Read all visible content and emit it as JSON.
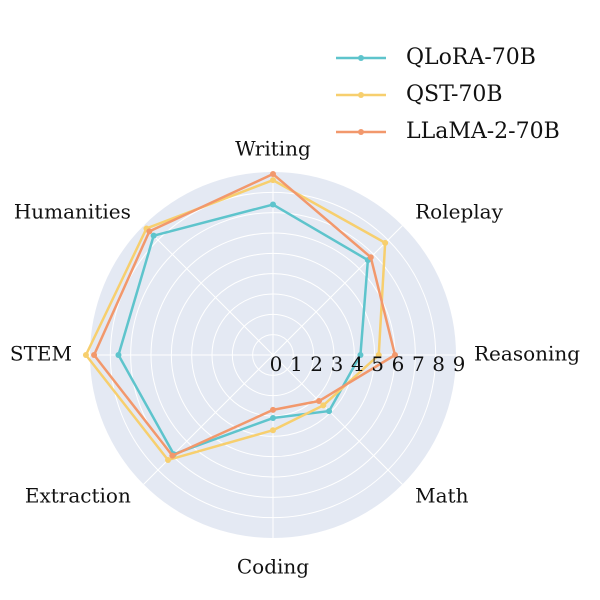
{
  "chart_data": {
    "type": "radar",
    "axes": [
      "Writing",
      "Roleplay",
      "Reasoning",
      "Math",
      "Coding",
      "Extraction",
      "STEM",
      "Humanities"
    ],
    "rlim": [
      0,
      9
    ],
    "ticks": [
      "0",
      "1",
      "2",
      "3",
      "4",
      "5",
      "6",
      "7",
      "8",
      "9"
    ],
    "grid": true,
    "legend_position": "top-right",
    "series": [
      {
        "name": "QLoRA-70B",
        "color": "#5ec4cc",
        "values": [
          7.4,
          6.6,
          4.3,
          3.9,
          3.1,
          6.9,
          7.6,
          8.3
        ]
      },
      {
        "name": "QST-70B",
        "color": "#f7cf6e",
        "values": [
          8.6,
          7.8,
          5.2,
          3.5,
          3.7,
          7.3,
          9.2,
          8.8
        ]
      },
      {
        "name": "LLaMA-2-70B",
        "color": "#f2986c",
        "values": [
          8.9,
          6.8,
          6.0,
          3.2,
          2.7,
          7.0,
          8.8,
          8.6
        ]
      }
    ]
  }
}
